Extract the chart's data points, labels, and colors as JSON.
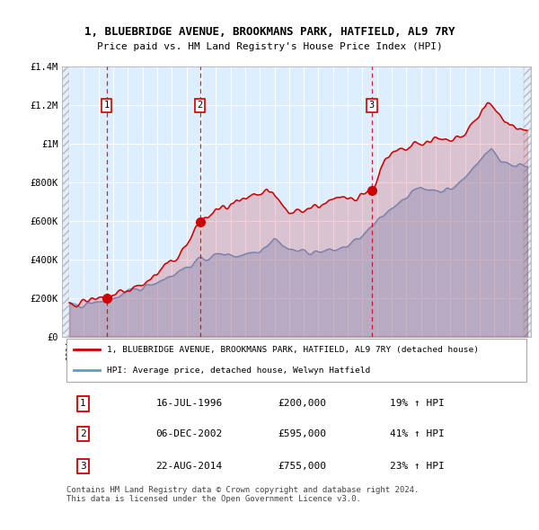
{
  "title_line1": "1, BLUEBRIDGE AVENUE, BROOKMANS PARK, HATFIELD, AL9 7RY",
  "title_line2": "Price paid vs. HM Land Registry's House Price Index (HPI)",
  "ylim": [
    0,
    1400000
  ],
  "yticks": [
    0,
    200000,
    400000,
    600000,
    800000,
    1000000,
    1200000,
    1400000
  ],
  "ytick_labels": [
    "£0",
    "£200K",
    "£400K",
    "£600K",
    "£800K",
    "£1M",
    "£1.2M",
    "£1.4M"
  ],
  "xlim_start": 1993.5,
  "xlim_end": 2025.5,
  "x_year_start": 1994,
  "x_year_end": 2025,
  "sale_dates": [
    1996.54,
    2002.92,
    2014.64
  ],
  "sale_prices": [
    200000,
    595000,
    755000
  ],
  "sale_labels": [
    "1",
    "2",
    "3"
  ],
  "red_line_color": "#cc0000",
  "blue_line_color": "#6699cc",
  "bg_color": "#ddeeff",
  "grid_color": "#ffffff",
  "legend_label_red": "1, BLUEBRIDGE AVENUE, BROOKMANS PARK, HATFIELD, AL9 7RY (detached house)",
  "legend_label_blue": "HPI: Average price, detached house, Welwyn Hatfield",
  "footer_text": "Contains HM Land Registry data © Crown copyright and database right 2024.\nThis data is licensed under the Open Government Licence v3.0.",
  "table_rows": [
    [
      "1",
      "16-JUL-1996",
      "£200,000",
      "19% ↑ HPI"
    ],
    [
      "2",
      "06-DEC-2002",
      "£595,000",
      "41% ↑ HPI"
    ],
    [
      "3",
      "22-AUG-2014",
      "£755,000",
      "23% ↑ HPI"
    ]
  ]
}
